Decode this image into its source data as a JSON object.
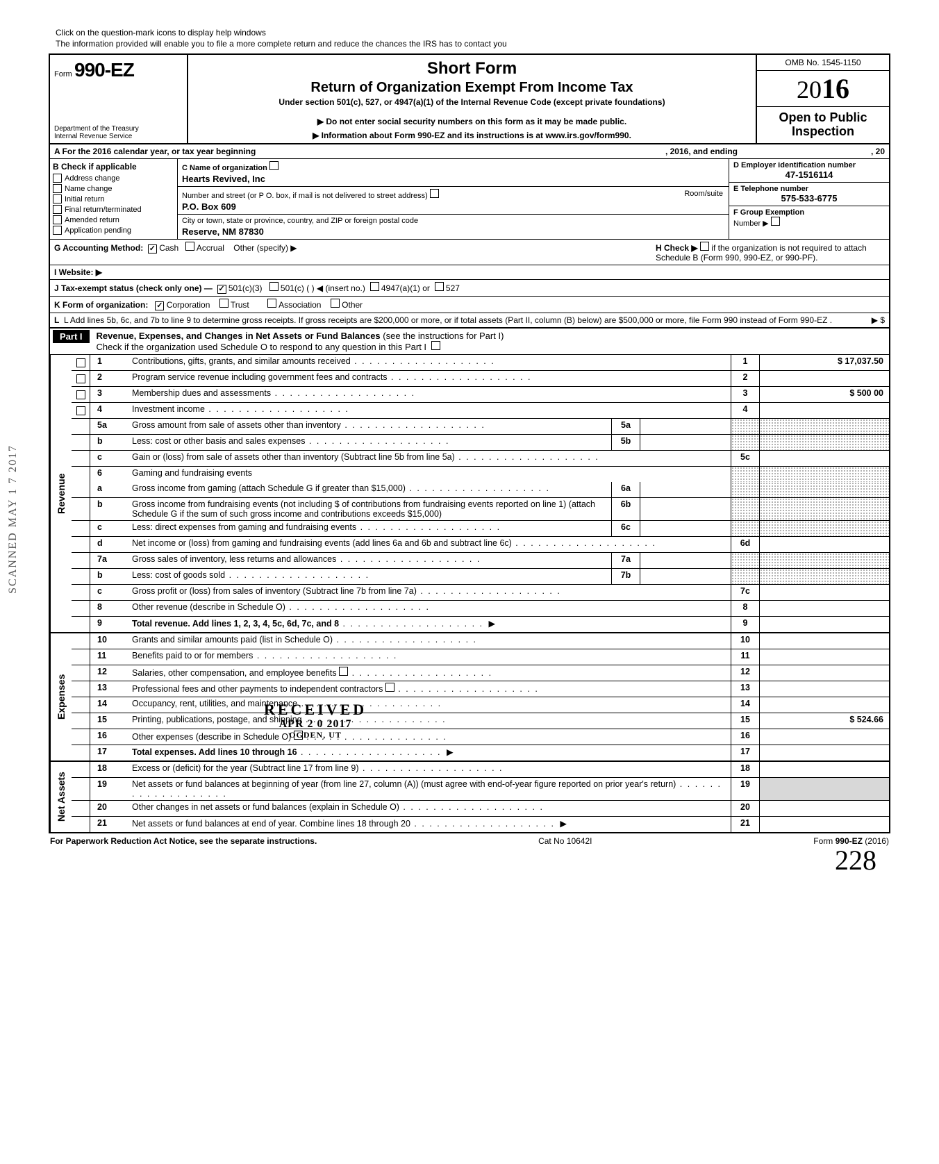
{
  "top_note_line1": "Click on the question-mark icons to display help windows",
  "top_note_line2": "The information provided will enable you to file a more complete return and reduce the chances the IRS has to contact you",
  "form_prefix": "Form",
  "form_number": "990-EZ",
  "dept1": "Department of the Treasury",
  "dept2": "Internal Revenue Service",
  "short_form": "Short Form",
  "return_title": "Return of Organization Exempt From Income Tax",
  "under_section": "Under section 501(c), 527, or 4947(a)(1) of the Internal Revenue Code (except private foundations)",
  "arrow1": "▶ Do not enter social security numbers on this form as it may be made public.",
  "arrow2": "▶ Information about Form 990-EZ and its instructions is at www.irs.gov/form990.",
  "omb": "OMB No. 1545-1150",
  "year_prefix": "20",
  "year_big": "16",
  "open_public_1": "Open to Public",
  "open_public_2": "Inspection",
  "row_a_left": "A  For the 2016 calendar year, or tax year beginning",
  "row_a_mid": ", 2016, and ending",
  "row_a_right": ", 20",
  "b_head": "B  Check if applicable",
  "b_items": [
    "Address change",
    "Name change",
    "Initial return",
    "Final return/terminated",
    "Amended return",
    "Application pending"
  ],
  "c_label": "C  Name of organization",
  "c_value": "Hearts Revived, Inc",
  "addr_label": "Number and street (or P O. box, if mail is not delivered to street address)",
  "addr_room": "Room/suite",
  "addr_value": "P.O. Box 609",
  "city_label": "City or town, state or province, country, and ZIP or foreign postal code",
  "city_value": "Reserve, NM 87830",
  "d_label": "D Employer identification number",
  "d_value": "47-1516114",
  "e_label": "E  Telephone number",
  "e_value": "575-533-6775",
  "f_label": "F  Group Exemption",
  "f_label2": "Number ▶",
  "g_label": "G  Accounting Method:",
  "g_cash": "Cash",
  "g_accrual": "Accrual",
  "g_other": "Other (specify) ▶",
  "h_label": "H  Check ▶",
  "h_rest": "if the organization is not required to attach Schedule B (Form 990, 990-EZ, or 990-PF).",
  "i_label": "I   Website: ▶",
  "j_label": "J  Tax-exempt status (check only one) —",
  "j_501c3": "501(c)(3)",
  "j_501c": "501(c) (          ) ◀ (insert no.)",
  "j_4947": "4947(a)(1) or",
  "j_527": "527",
  "k_label": "K  Form of organization:",
  "k_corp": "Corporation",
  "k_trust": "Trust",
  "k_assoc": "Association",
  "k_other": "Other",
  "l_text": "L  Add lines 5b, 6c, and 7b to line 9 to determine gross receipts. If gross receipts are $200,000 or more, or if total assets (Part II, column (B) below) are $500,000 or more, file Form 990 instead of Form 990-EZ .",
  "l_arrow": "▶   $",
  "part1_tag": "Part I",
  "part1_t1": "Revenue, Expenses, and Changes in Net Assets or Fund Balances",
  "part1_t2": " (see the instructions for Part I)",
  "part1_sub": "Check if the organization used Schedule O to respond to any question in this Part I",
  "sections": {
    "revenue": "Revenue",
    "expenses": "Expenses",
    "netassets": "Net Assets"
  },
  "lines": {
    "1": {
      "n": "1",
      "d": "Contributions, gifts, grants, and similar amounts received",
      "col": "1",
      "val": "$ 17,037.50"
    },
    "2": {
      "n": "2",
      "d": "Program service revenue including government fees and contracts",
      "col": "2",
      "val": ""
    },
    "3": {
      "n": "3",
      "d": "Membership dues and assessments",
      "col": "3",
      "val": "$        500 00"
    },
    "4": {
      "n": "4",
      "d": "Investment income",
      "col": "4",
      "val": ""
    },
    "5a": {
      "n": "5a",
      "d": "Gross amount from sale of assets other than inventory",
      "sub": "5a"
    },
    "5b": {
      "n": "b",
      "d": "Less: cost or other basis and sales expenses",
      "sub": "5b"
    },
    "5c": {
      "n": "c",
      "d": "Gain or (loss) from sale of assets other than inventory (Subtract line 5b from line 5a)",
      "col": "5c",
      "val": ""
    },
    "6": {
      "n": "6",
      "d": "Gaming and fundraising events"
    },
    "6a": {
      "n": "a",
      "d": "Gross income from gaming (attach Schedule G if greater than $15,000)",
      "sub": "6a"
    },
    "6b": {
      "n": "b",
      "d": "Gross income from fundraising events (not including  $                          of contributions from fundraising events reported on line 1) (attach Schedule G if the sum of such gross income and contributions exceeds $15,000)",
      "sub": "6b"
    },
    "6c": {
      "n": "c",
      "d": "Less: direct expenses from gaming and fundraising events",
      "sub": "6c"
    },
    "6d": {
      "n": "d",
      "d": "Net income or (loss) from gaming and fundraising events (add lines 6a and 6b and subtract line 6c)",
      "col": "6d",
      "val": ""
    },
    "7a": {
      "n": "7a",
      "d": "Gross sales of inventory, less returns and allowances",
      "sub": "7a"
    },
    "7b": {
      "n": "b",
      "d": "Less: cost of goods sold",
      "sub": "7b"
    },
    "7c": {
      "n": "c",
      "d": "Gross profit or (loss) from sales of inventory (Subtract line 7b from line 7a)",
      "col": "7c",
      "val": ""
    },
    "8": {
      "n": "8",
      "d": "Other revenue (describe in Schedule O)",
      "col": "8",
      "val": ""
    },
    "9": {
      "n": "9",
      "d": "Total revenue. Add lines 1, 2, 3, 4, 5c, 6d, 7c, and 8",
      "col": "9",
      "val": "",
      "arrow": true,
      "bold": true
    },
    "10": {
      "n": "10",
      "d": "Grants and similar amounts paid (list in Schedule O)",
      "col": "10",
      "val": ""
    },
    "11": {
      "n": "11",
      "d": "Benefits paid to or for members",
      "col": "11",
      "val": ""
    },
    "12": {
      "n": "12",
      "d": "Salaries, other compensation, and employee benefits",
      "col": "12",
      "val": "",
      "q": true
    },
    "13": {
      "n": "13",
      "d": "Professional fees and other payments to independent contractors",
      "col": "13",
      "val": "",
      "q": true
    },
    "14": {
      "n": "14",
      "d": "Occupancy, rent, utilities, and maintenance",
      "col": "14",
      "val": ""
    },
    "15": {
      "n": "15",
      "d": "Printing, publications, postage, and shipping",
      "col": "15",
      "val": "$        524.66"
    },
    "16": {
      "n": "16",
      "d": "Other expenses (describe in Schedule O)",
      "col": "16",
      "val": "",
      "q": true
    },
    "17": {
      "n": "17",
      "d": "Total expenses. Add lines 10 through 16",
      "col": "17",
      "val": "",
      "arrow": true,
      "bold": true
    },
    "18": {
      "n": "18",
      "d": "Excess or (deficit) for the year (Subtract line 17 from line 9)",
      "col": "18",
      "val": ""
    },
    "19": {
      "n": "19",
      "d": "Net assets or fund balances at beginning of year (from line 27, column (A)) (must agree with end-of-year figure reported on prior year's return)",
      "col": "19",
      "val": ""
    },
    "20": {
      "n": "20",
      "d": "Other changes in net assets or fund balances (explain in Schedule O)",
      "col": "20",
      "val": ""
    },
    "21": {
      "n": "21",
      "d": "Net assets or fund balances at end of year. Combine lines 18 through 20",
      "col": "21",
      "val": "",
      "arrow": true
    }
  },
  "footer_left": "For Paperwork Reduction Act Notice, see the separate instructions.",
  "footer_mid": "Cat  No  10642I",
  "footer_form": "Form 990-EZ (2016)",
  "vstamp": "SCANNED MAY 1 7 2017",
  "received_1": "RECEIVED",
  "received_2": "APR 2 0 2017",
  "received_3": "OGDEN, UT",
  "sig": "228"
}
